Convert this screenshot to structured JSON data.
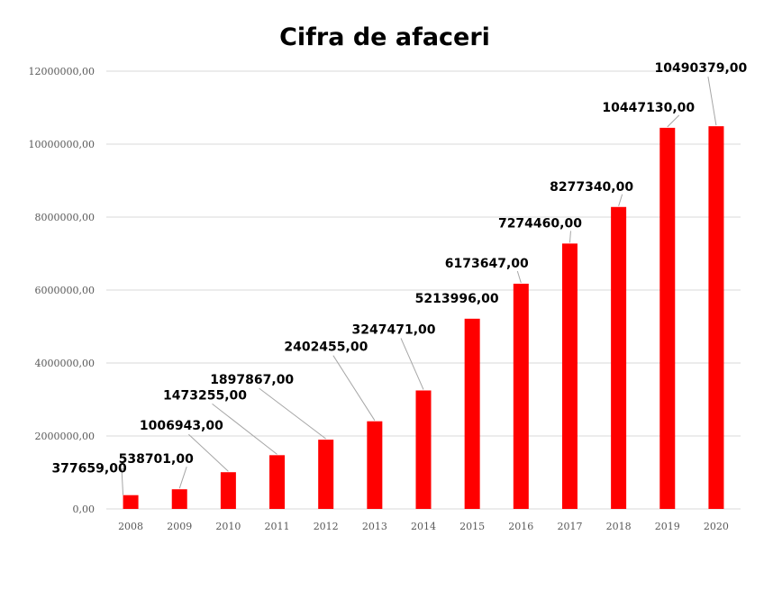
{
  "chart_data": {
    "type": "bar",
    "title": "Cifra de afaceri",
    "xlabel": "",
    "ylabel": "",
    "categories": [
      "2008",
      "2009",
      "2010",
      "2011",
      "2012",
      "2013",
      "2014",
      "2015",
      "2016",
      "2017",
      "2018",
      "2019",
      "2020"
    ],
    "values": [
      377659,
      538701,
      1006943,
      1473255,
      1897867,
      2402455,
      3247471,
      5213996,
      6173647,
      7274460,
      8277340,
      10447130,
      10490379
    ],
    "data_labels": [
      "377659,00",
      "538701,00",
      "1006943,00",
      "1473255,00",
      "1897867,00",
      "2402455,00",
      "3247471,00",
      "5213996,00",
      "6173647,00",
      "7274460,00",
      "8277340,00",
      "10447130,00",
      "10490379,00"
    ],
    "ylim": [
      0,
      12000000
    ],
    "yticks": [
      0,
      2000000,
      4000000,
      6000000,
      8000000,
      10000000,
      12000000
    ],
    "ytick_labels": [
      "0,00",
      "2000000,00",
      "4000000,00",
      "6000000,00",
      "8000000,00",
      "10000000,00",
      "12000000,00"
    ],
    "bar_color": "#ff0000",
    "grid": true,
    "legend": "none"
  }
}
